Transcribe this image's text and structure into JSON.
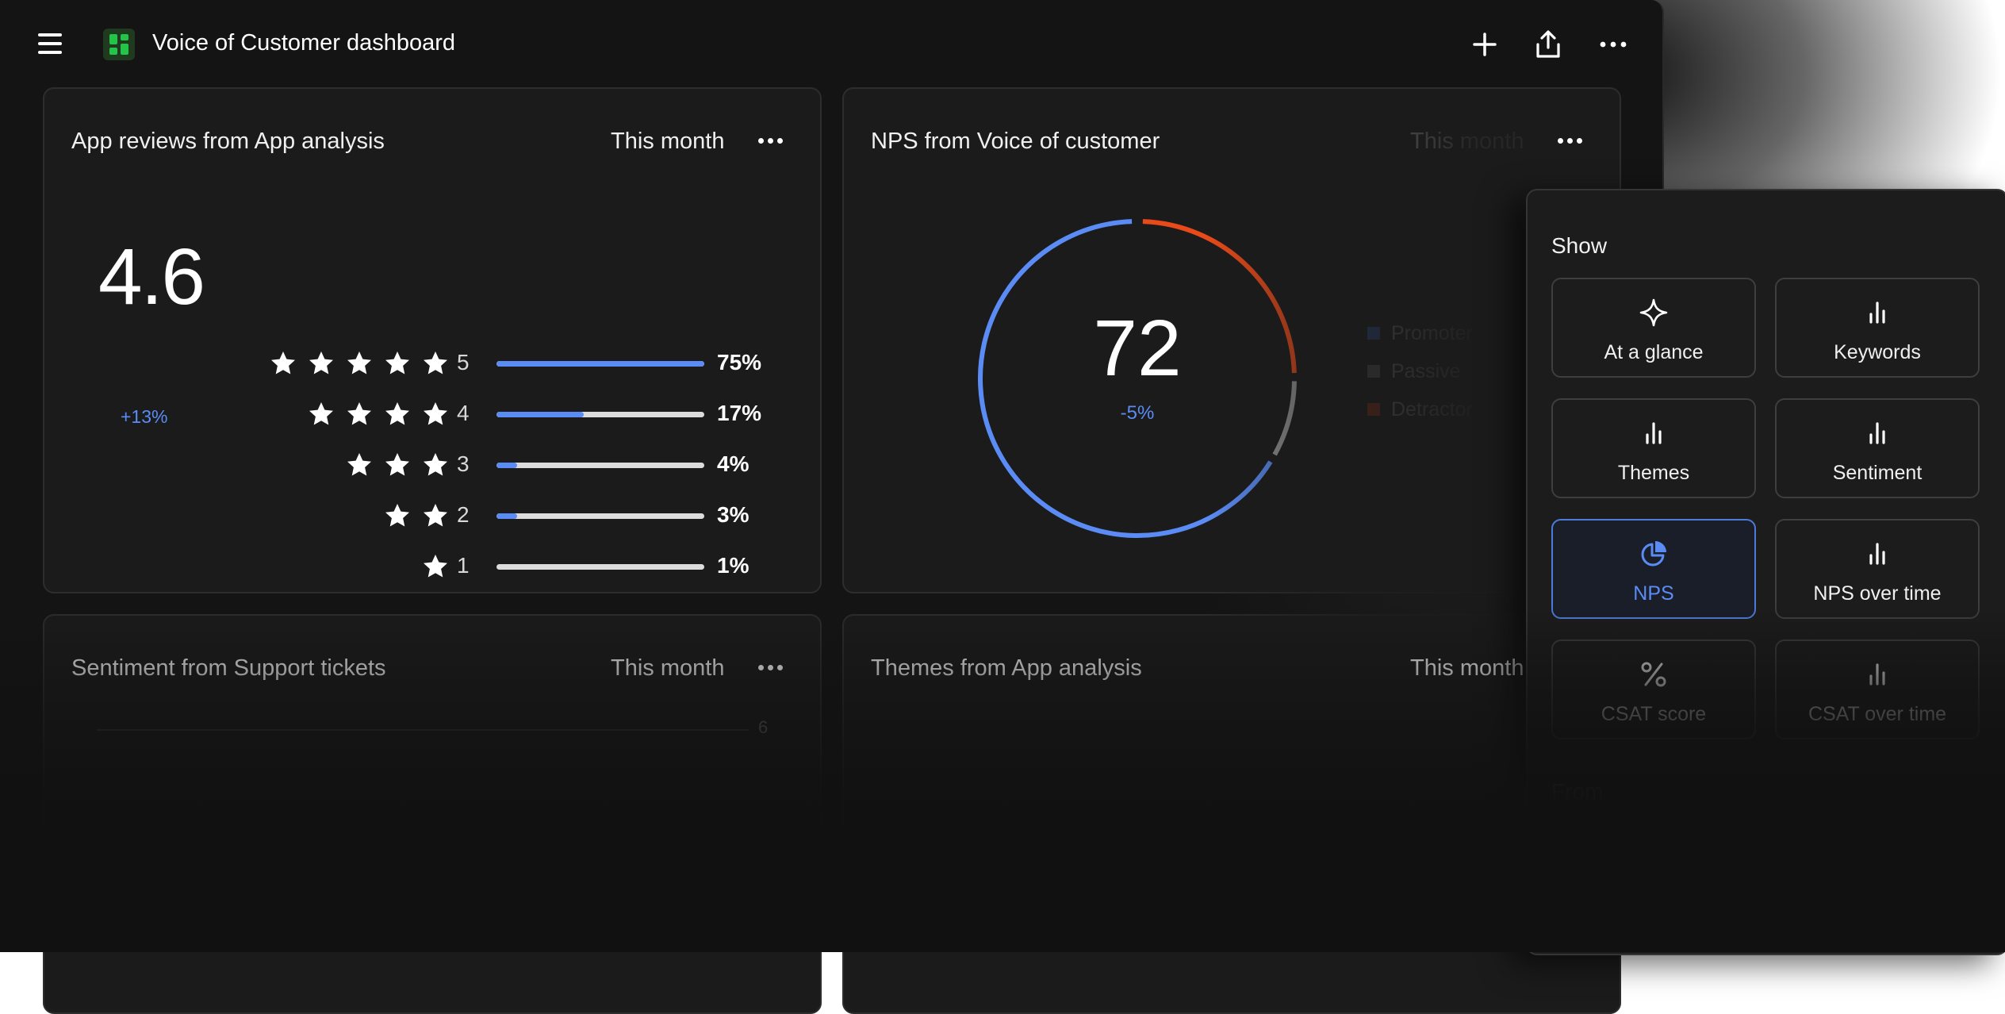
{
  "header": {
    "title": "Voice of Customer dashboard",
    "menu_icon": "hamburger-menu-icon",
    "logo_icon": "dashboard-logo-icon",
    "logo_color": "#23c447",
    "actions": [
      "add-icon",
      "share-icon",
      "more-icon"
    ]
  },
  "cards": {
    "app_reviews": {
      "title": "App reviews from App analysis",
      "period": "This month",
      "average": "4.6",
      "delta": "+13%",
      "rows": [
        {
          "stars": 5,
          "label": "5",
          "percent": "75%",
          "fill": 1.0
        },
        {
          "stars": 4,
          "label": "4",
          "percent": "17%",
          "fill": 0.42
        },
        {
          "stars": 3,
          "label": "3",
          "percent": "4%",
          "fill": 0.1
        },
        {
          "stars": 2,
          "label": "2",
          "percent": "3%",
          "fill": 0.1
        },
        {
          "stars": 1,
          "label": "1",
          "percent": "1%",
          "fill": 0.0
        }
      ]
    },
    "nps": {
      "title": "NPS from Voice of customer",
      "period": "This month",
      "value": "72",
      "delta": "-5%",
      "legend": [
        {
          "label": "Promoter",
          "color": "#2d4a8a"
        },
        {
          "label": "Passive",
          "color": "#555555"
        },
        {
          "label": "Detractor",
          "color": "#8a2e12"
        }
      ],
      "ring_colors": {
        "promoter": "#5b8cf5",
        "passive": "#9a9a9a",
        "detractor": "#e84a1a"
      }
    },
    "sentiment": {
      "title": "Sentiment from Support tickets",
      "period": "This month",
      "axis_tick": "6"
    },
    "themes": {
      "title": "Themes from App analysis",
      "period": "This month"
    }
  },
  "panel": {
    "heading": "Show",
    "options": [
      {
        "label": "At a glance",
        "icon": "sparkle-icon",
        "selected": false
      },
      {
        "label": "Keywords",
        "icon": "bar-chart-icon",
        "selected": false
      },
      {
        "label": "Themes",
        "icon": "bar-chart-icon",
        "selected": false
      },
      {
        "label": "Sentiment",
        "icon": "bar-chart-icon",
        "selected": false
      },
      {
        "label": "NPS",
        "icon": "pie-chart-icon",
        "selected": true
      },
      {
        "label": "NPS over time",
        "icon": "bar-chart-icon",
        "selected": false
      },
      {
        "label": "CSAT score",
        "icon": "percent-icon",
        "selected": false
      },
      {
        "label": "CSAT over time",
        "icon": "bar-chart-icon",
        "selected": false
      }
    ],
    "from_heading": "From",
    "accent": "#5b8cf5"
  }
}
